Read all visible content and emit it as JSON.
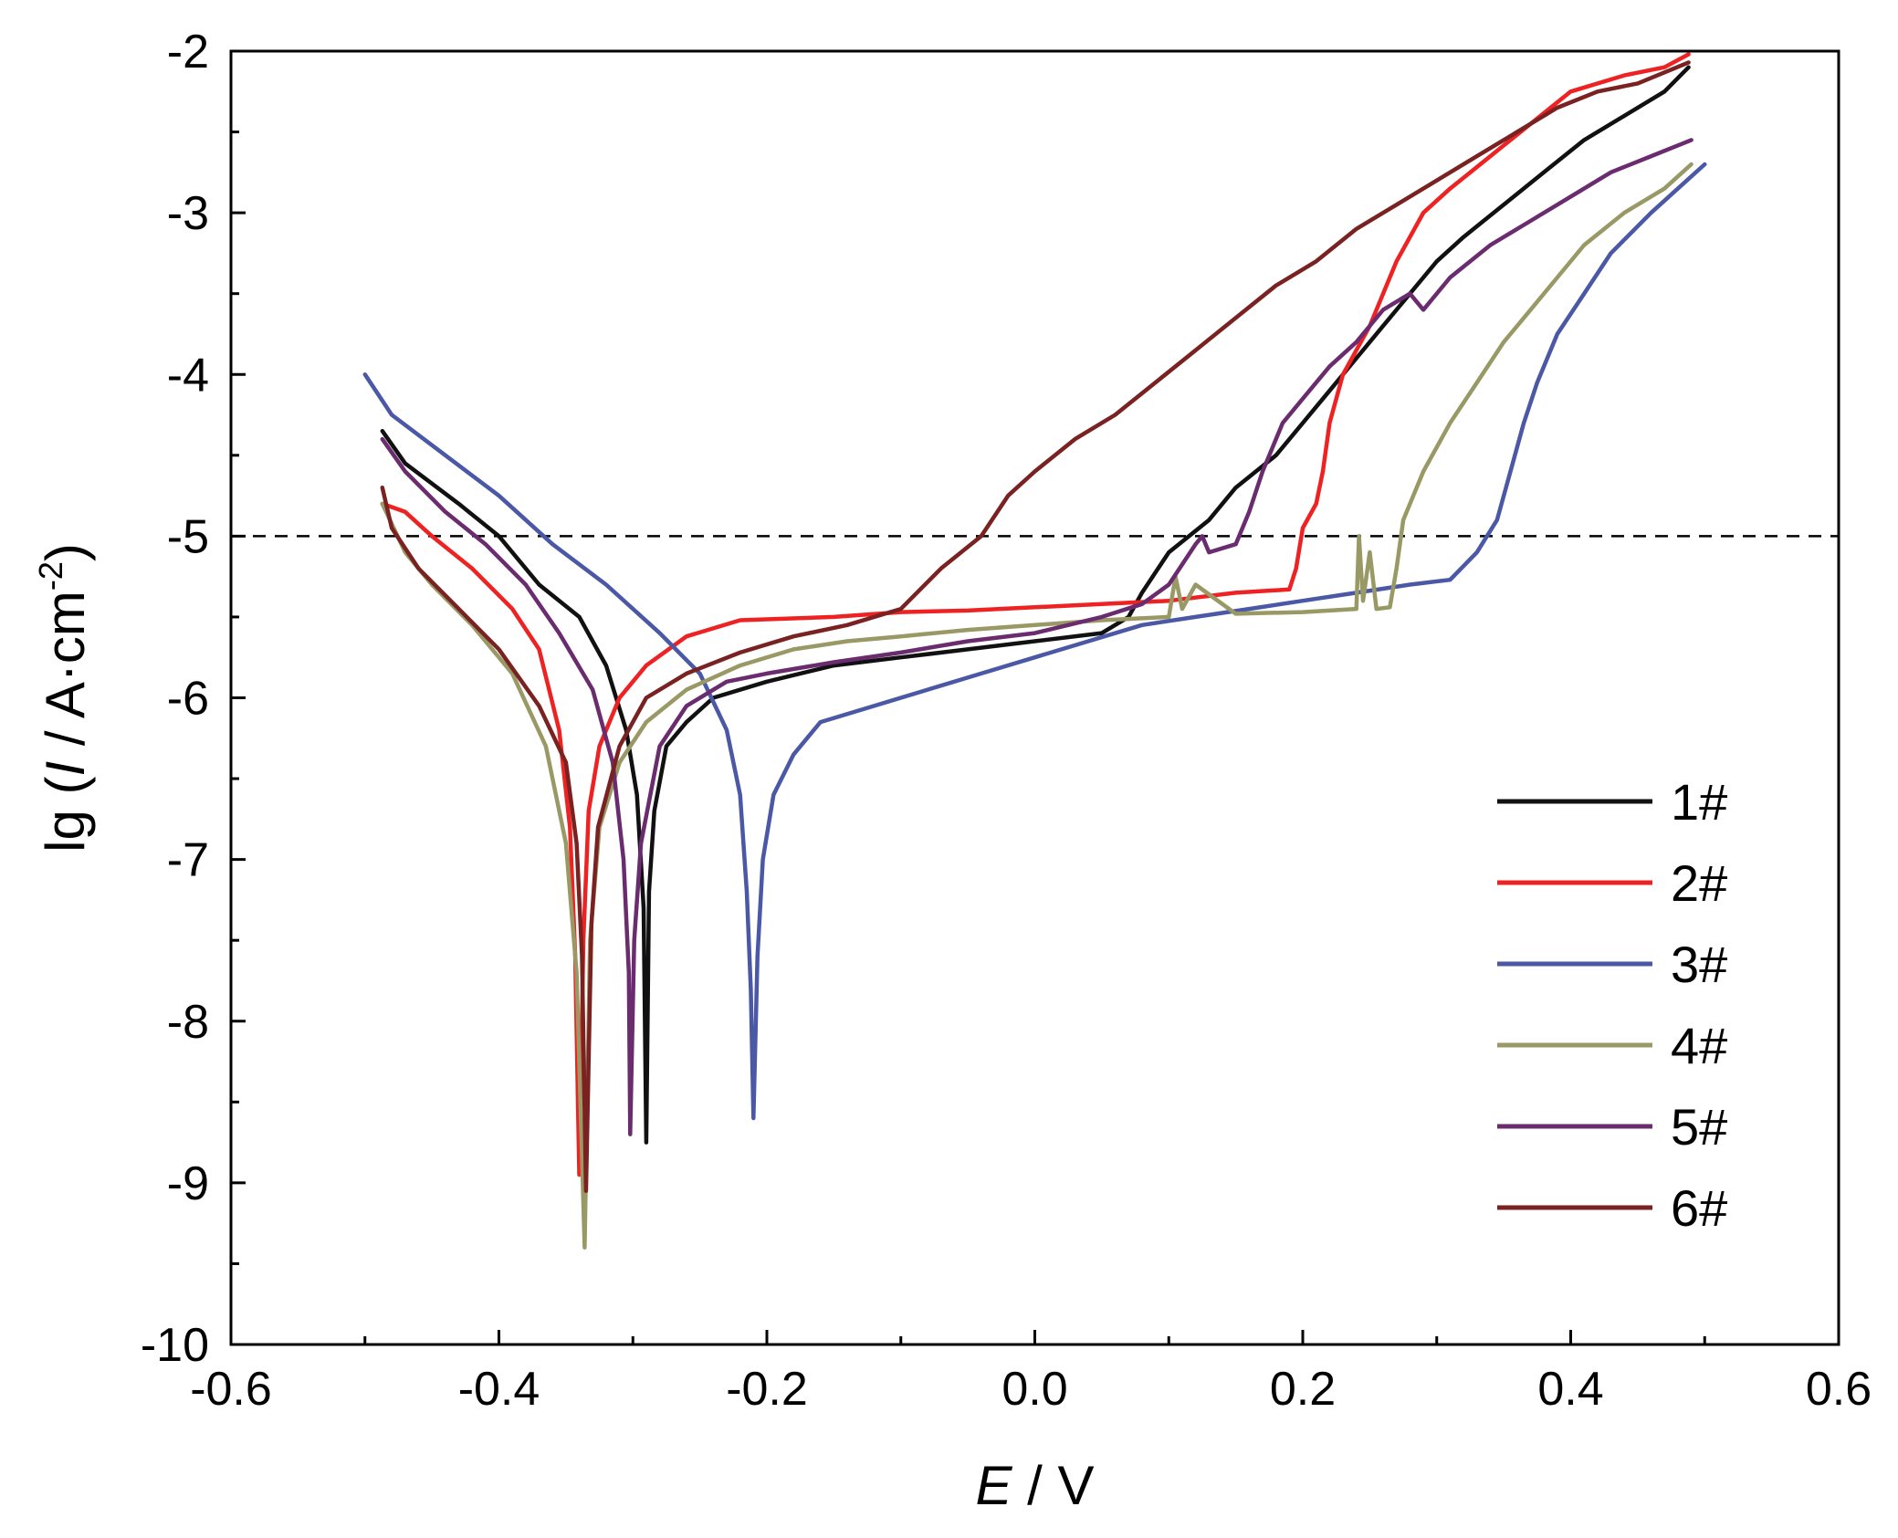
{
  "chart_data": {
    "type": "line",
    "xlabel": {
      "italic": "E",
      "rest": " / V"
    },
    "ylabel": {
      "pre": "lg (",
      "italic": "I",
      "post": " / A·cm",
      "sup": "-2",
      "close": ")"
    },
    "xlim": [
      -0.6,
      0.6
    ],
    "ylim": [
      -10,
      -2
    ],
    "xticks": [
      -0.6,
      -0.4,
      -0.2,
      0.0,
      0.2,
      0.4,
      0.6
    ],
    "xtick_labels": [
      "-0.6",
      "-0.4",
      "-0.2",
      "0.0",
      "0.2",
      "0.4",
      "0.6"
    ],
    "yticks": [
      -10,
      -9,
      -8,
      -7,
      -6,
      -5,
      -4,
      -3,
      -2
    ],
    "ytick_labels": [
      "-10",
      "-9",
      "-8",
      "-7",
      "-6",
      "-5",
      "-4",
      "-3",
      "-2"
    ],
    "reference_line": {
      "y": -5,
      "style": "dashed"
    },
    "legend_position": "lower-right",
    "series": [
      {
        "name": "1#",
        "color": "#111111",
        "points": [
          [
            -0.487,
            -4.35
          ],
          [
            -0.47,
            -4.55
          ],
          [
            -0.43,
            -4.8
          ],
          [
            -0.4,
            -5.0
          ],
          [
            -0.37,
            -5.3
          ],
          [
            -0.34,
            -5.5
          ],
          [
            -0.32,
            -5.8
          ],
          [
            -0.305,
            -6.2
          ],
          [
            -0.297,
            -6.6
          ],
          [
            -0.292,
            -7.3
          ],
          [
            -0.29,
            -8.75
          ],
          [
            -0.288,
            -7.2
          ],
          [
            -0.284,
            -6.7
          ],
          [
            -0.275,
            -6.3
          ],
          [
            -0.26,
            -6.15
          ],
          [
            -0.24,
            -6.0
          ],
          [
            -0.2,
            -5.9
          ],
          [
            -0.15,
            -5.8
          ],
          [
            -0.1,
            -5.75
          ],
          [
            -0.05,
            -5.7
          ],
          [
            0.0,
            -5.65
          ],
          [
            0.05,
            -5.6
          ],
          [
            0.07,
            -5.5
          ],
          [
            0.08,
            -5.35
          ],
          [
            0.1,
            -5.1
          ],
          [
            0.13,
            -4.9
          ],
          [
            0.15,
            -4.7
          ],
          [
            0.18,
            -4.5
          ],
          [
            0.2,
            -4.3
          ],
          [
            0.22,
            -4.1
          ],
          [
            0.24,
            -3.9
          ],
          [
            0.26,
            -3.7
          ],
          [
            0.28,
            -3.5
          ],
          [
            0.3,
            -3.3
          ],
          [
            0.32,
            -3.15
          ],
          [
            0.35,
            -2.95
          ],
          [
            0.38,
            -2.75
          ],
          [
            0.41,
            -2.55
          ],
          [
            0.44,
            -2.4
          ],
          [
            0.47,
            -2.25
          ],
          [
            0.488,
            -2.1
          ]
        ]
      },
      {
        "name": "2#",
        "color": "#ee2222",
        "points": [
          [
            -0.487,
            -4.8
          ],
          [
            -0.47,
            -4.85
          ],
          [
            -0.45,
            -5.0
          ],
          [
            -0.42,
            -5.2
          ],
          [
            -0.39,
            -5.45
          ],
          [
            -0.37,
            -5.7
          ],
          [
            -0.355,
            -6.2
          ],
          [
            -0.347,
            -6.8
          ],
          [
            -0.343,
            -7.6
          ],
          [
            -0.34,
            -8.95
          ],
          [
            -0.337,
            -7.5
          ],
          [
            -0.333,
            -6.7
          ],
          [
            -0.325,
            -6.3
          ],
          [
            -0.31,
            -6.0
          ],
          [
            -0.29,
            -5.8
          ],
          [
            -0.26,
            -5.62
          ],
          [
            -0.22,
            -5.52
          ],
          [
            -0.15,
            -5.5
          ],
          [
            -0.1,
            -5.47
          ],
          [
            -0.05,
            -5.46
          ],
          [
            0.0,
            -5.44
          ],
          [
            0.05,
            -5.42
          ],
          [
            0.1,
            -5.4
          ],
          [
            0.15,
            -5.35
          ],
          [
            0.19,
            -5.33
          ],
          [
            0.195,
            -5.2
          ],
          [
            0.2,
            -4.95
          ],
          [
            0.21,
            -4.8
          ],
          [
            0.215,
            -4.6
          ],
          [
            0.22,
            -4.3
          ],
          [
            0.23,
            -4.0
          ],
          [
            0.25,
            -3.7
          ],
          [
            0.27,
            -3.3
          ],
          [
            0.29,
            -3.0
          ],
          [
            0.31,
            -2.85
          ],
          [
            0.34,
            -2.65
          ],
          [
            0.37,
            -2.45
          ],
          [
            0.4,
            -2.25
          ],
          [
            0.44,
            -2.15
          ],
          [
            0.47,
            -2.1
          ],
          [
            0.488,
            -2.02
          ]
        ]
      },
      {
        "name": "3#",
        "color": "#4a58a5",
        "points": [
          [
            -0.5,
            -4.0
          ],
          [
            -0.48,
            -4.25
          ],
          [
            -0.44,
            -4.5
          ],
          [
            -0.4,
            -4.75
          ],
          [
            -0.36,
            -5.05
          ],
          [
            -0.32,
            -5.3
          ],
          [
            -0.28,
            -5.6
          ],
          [
            -0.25,
            -5.85
          ],
          [
            -0.23,
            -6.2
          ],
          [
            -0.22,
            -6.6
          ],
          [
            -0.215,
            -7.2
          ],
          [
            -0.212,
            -7.8
          ],
          [
            -0.21,
            -8.6
          ],
          [
            -0.207,
            -7.6
          ],
          [
            -0.203,
            -7.0
          ],
          [
            -0.195,
            -6.6
          ],
          [
            -0.18,
            -6.35
          ],
          [
            -0.16,
            -6.15
          ],
          [
            -0.12,
            -6.05
          ],
          [
            -0.08,
            -5.95
          ],
          [
            -0.04,
            -5.85
          ],
          [
            0.0,
            -5.75
          ],
          [
            0.04,
            -5.65
          ],
          [
            0.08,
            -5.55
          ],
          [
            0.12,
            -5.5
          ],
          [
            0.16,
            -5.45
          ],
          [
            0.2,
            -5.4
          ],
          [
            0.24,
            -5.35
          ],
          [
            0.28,
            -5.3
          ],
          [
            0.31,
            -5.27
          ],
          [
            0.33,
            -5.1
          ],
          [
            0.345,
            -4.9
          ],
          [
            0.355,
            -4.6
          ],
          [
            0.365,
            -4.3
          ],
          [
            0.375,
            -4.05
          ],
          [
            0.39,
            -3.75
          ],
          [
            0.41,
            -3.5
          ],
          [
            0.43,
            -3.25
          ],
          [
            0.46,
            -3.0
          ],
          [
            0.48,
            -2.85
          ],
          [
            0.5,
            -2.7
          ]
        ]
      },
      {
        "name": "4#",
        "color": "#999966",
        "points": [
          [
            -0.487,
            -4.8
          ],
          [
            -0.47,
            -5.1
          ],
          [
            -0.45,
            -5.3
          ],
          [
            -0.42,
            -5.55
          ],
          [
            -0.39,
            -5.85
          ],
          [
            -0.365,
            -6.3
          ],
          [
            -0.35,
            -6.9
          ],
          [
            -0.342,
            -7.7
          ],
          [
            -0.336,
            -9.4
          ],
          [
            -0.332,
            -7.5
          ],
          [
            -0.325,
            -6.8
          ],
          [
            -0.31,
            -6.4
          ],
          [
            -0.29,
            -6.15
          ],
          [
            -0.26,
            -5.95
          ],
          [
            -0.22,
            -5.8
          ],
          [
            -0.18,
            -5.7
          ],
          [
            -0.14,
            -5.65
          ],
          [
            -0.1,
            -5.62
          ],
          [
            -0.05,
            -5.58
          ],
          [
            0.0,
            -5.55
          ],
          [
            0.05,
            -5.52
          ],
          [
            0.1,
            -5.5
          ],
          [
            0.105,
            -5.25
          ],
          [
            0.11,
            -5.45
          ],
          [
            0.12,
            -5.3
          ],
          [
            0.15,
            -5.48
          ],
          [
            0.2,
            -5.47
          ],
          [
            0.24,
            -5.45
          ],
          [
            0.242,
            -5.0
          ],
          [
            0.245,
            -5.4
          ],
          [
            0.25,
            -5.1
          ],
          [
            0.255,
            -5.45
          ],
          [
            0.265,
            -5.44
          ],
          [
            0.27,
            -5.2
          ],
          [
            0.275,
            -4.9
          ],
          [
            0.29,
            -4.6
          ],
          [
            0.31,
            -4.3
          ],
          [
            0.33,
            -4.05
          ],
          [
            0.35,
            -3.8
          ],
          [
            0.37,
            -3.6
          ],
          [
            0.39,
            -3.4
          ],
          [
            0.41,
            -3.2
          ],
          [
            0.44,
            -3.0
          ],
          [
            0.47,
            -2.85
          ],
          [
            0.49,
            -2.7
          ]
        ]
      },
      {
        "name": "5#",
        "color": "#6a2c6e",
        "points": [
          [
            -0.487,
            -4.4
          ],
          [
            -0.47,
            -4.6
          ],
          [
            -0.44,
            -4.85
          ],
          [
            -0.41,
            -5.05
          ],
          [
            -0.38,
            -5.3
          ],
          [
            -0.355,
            -5.6
          ],
          [
            -0.33,
            -5.95
          ],
          [
            -0.315,
            -6.4
          ],
          [
            -0.307,
            -7.0
          ],
          [
            -0.303,
            -7.7
          ],
          [
            -0.302,
            -8.7
          ],
          [
            -0.299,
            -7.5
          ],
          [
            -0.294,
            -6.9
          ],
          [
            -0.28,
            -6.3
          ],
          [
            -0.26,
            -6.05
          ],
          [
            -0.23,
            -5.9
          ],
          [
            -0.2,
            -5.85
          ],
          [
            -0.15,
            -5.78
          ],
          [
            -0.1,
            -5.72
          ],
          [
            -0.05,
            -5.65
          ],
          [
            0.0,
            -5.6
          ],
          [
            0.05,
            -5.5
          ],
          [
            0.08,
            -5.42
          ],
          [
            0.1,
            -5.3
          ],
          [
            0.12,
            -5.05
          ],
          [
            0.125,
            -5.0
          ],
          [
            0.13,
            -5.1
          ],
          [
            0.15,
            -5.05
          ],
          [
            0.16,
            -4.85
          ],
          [
            0.17,
            -4.6
          ],
          [
            0.185,
            -4.3
          ],
          [
            0.2,
            -4.15
          ],
          [
            0.22,
            -3.95
          ],
          [
            0.24,
            -3.8
          ],
          [
            0.26,
            -3.6
          ],
          [
            0.28,
            -3.5
          ],
          [
            0.29,
            -3.6
          ],
          [
            0.31,
            -3.4
          ],
          [
            0.34,
            -3.2
          ],
          [
            0.37,
            -3.05
          ],
          [
            0.4,
            -2.9
          ],
          [
            0.43,
            -2.75
          ],
          [
            0.46,
            -2.65
          ],
          [
            0.49,
            -2.55
          ]
        ]
      },
      {
        "name": "6#",
        "color": "#7a2222",
        "points": [
          [
            -0.487,
            -4.7
          ],
          [
            -0.48,
            -4.95
          ],
          [
            -0.46,
            -5.2
          ],
          [
            -0.43,
            -5.45
          ],
          [
            -0.4,
            -5.7
          ],
          [
            -0.37,
            -6.05
          ],
          [
            -0.35,
            -6.4
          ],
          [
            -0.342,
            -6.9
          ],
          [
            -0.338,
            -7.6
          ],
          [
            -0.335,
            -9.05
          ],
          [
            -0.331,
            -7.4
          ],
          [
            -0.326,
            -6.8
          ],
          [
            -0.31,
            -6.3
          ],
          [
            -0.29,
            -6.0
          ],
          [
            -0.26,
            -5.85
          ],
          [
            -0.22,
            -5.72
          ],
          [
            -0.18,
            -5.62
          ],
          [
            -0.14,
            -5.55
          ],
          [
            -0.1,
            -5.45
          ],
          [
            -0.07,
            -5.2
          ],
          [
            -0.04,
            -5.0
          ],
          [
            -0.02,
            -4.75
          ],
          [
            0.0,
            -4.6
          ],
          [
            0.03,
            -4.4
          ],
          [
            0.06,
            -4.25
          ],
          [
            0.09,
            -4.05
          ],
          [
            0.12,
            -3.85
          ],
          [
            0.15,
            -3.65
          ],
          [
            0.18,
            -3.45
          ],
          [
            0.21,
            -3.3
          ],
          [
            0.24,
            -3.1
          ],
          [
            0.27,
            -2.95
          ],
          [
            0.3,
            -2.8
          ],
          [
            0.33,
            -2.65
          ],
          [
            0.36,
            -2.5
          ],
          [
            0.39,
            -2.35
          ],
          [
            0.42,
            -2.25
          ],
          [
            0.45,
            -2.2
          ],
          [
            0.488,
            -2.07
          ]
        ]
      }
    ]
  }
}
